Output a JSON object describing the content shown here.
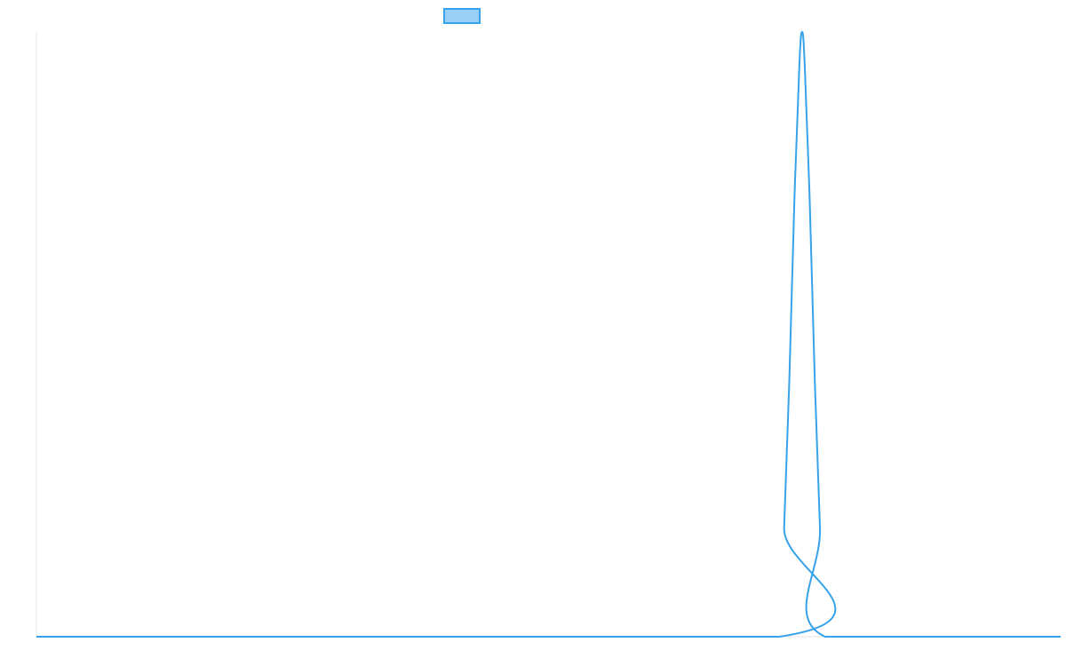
{
  "chart_data": {
    "type": "line",
    "title": "",
    "xlabel": "",
    "ylabel": "",
    "legend": {
      "position": "top-center",
      "entries": [
        {
          "name": "",
          "color": "#36A2EB",
          "fill": "#9AD0F5"
        }
      ]
    },
    "grid": false,
    "xlim": [
      0,
      100
    ],
    "ylim": [
      0,
      1
    ],
    "x_ticks": [],
    "y_ticks": [],
    "series": [
      {
        "name": "",
        "color": "#36A2EB",
        "x": [
          0,
          72.5,
          73.0,
          73.5,
          74.0,
          74.5,
          74.75,
          75.0,
          75.5,
          76.0,
          76.5,
          77.0,
          100
        ],
        "y": [
          0,
          0,
          0.18,
          0.42,
          0.72,
          0.95,
          1.0,
          0.95,
          0.72,
          0.42,
          0.18,
          0,
          0
        ]
      }
    ]
  }
}
